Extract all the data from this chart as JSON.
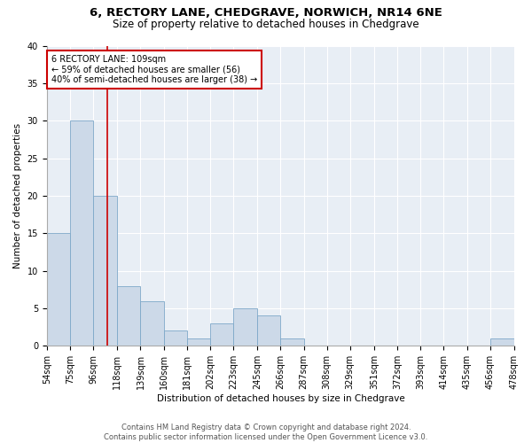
{
  "title": "6, RECTORY LANE, CHEDGRAVE, NORWICH, NR14 6NE",
  "subtitle": "Size of property relative to detached houses in Chedgrave",
  "xlabel": "Distribution of detached houses by size in Chedgrave",
  "ylabel": "Number of detached properties",
  "footer_line1": "Contains HM Land Registry data © Crown copyright and database right 2024.",
  "footer_line2": "Contains public sector information licensed under the Open Government Licence v3.0.",
  "annotation_line1": "6 RECTORY LANE: 109sqm",
  "annotation_line2": "← 59% of detached houses are smaller (56)",
  "annotation_line3": "40% of semi-detached houses are larger (38) →",
  "bar_color": "#ccd9e8",
  "bar_edge_color": "#7da8c8",
  "vline_color": "#cc0000",
  "annotation_box_edgecolor": "#cc0000",
  "bins": [
    54,
    75,
    96,
    118,
    139,
    160,
    181,
    202,
    223,
    245,
    266,
    287,
    308,
    329,
    351,
    372,
    393,
    414,
    435,
    456,
    478
  ],
  "values": [
    15,
    30,
    20,
    8,
    6,
    2,
    1,
    3,
    5,
    4,
    1,
    0,
    0,
    0,
    0,
    0,
    0,
    0,
    0,
    1
  ],
  "vline_x": 109,
  "ylim": [
    0,
    40
  ],
  "yticks": [
    0,
    5,
    10,
    15,
    20,
    25,
    30,
    35,
    40
  ],
  "plot_bg_color": "#e8eef5",
  "grid_color": "#ffffff",
  "title_fontsize": 9.5,
  "subtitle_fontsize": 8.5,
  "axis_label_fontsize": 7.5,
  "tick_fontsize": 7,
  "annotation_fontsize": 7,
  "footer_fontsize": 6
}
